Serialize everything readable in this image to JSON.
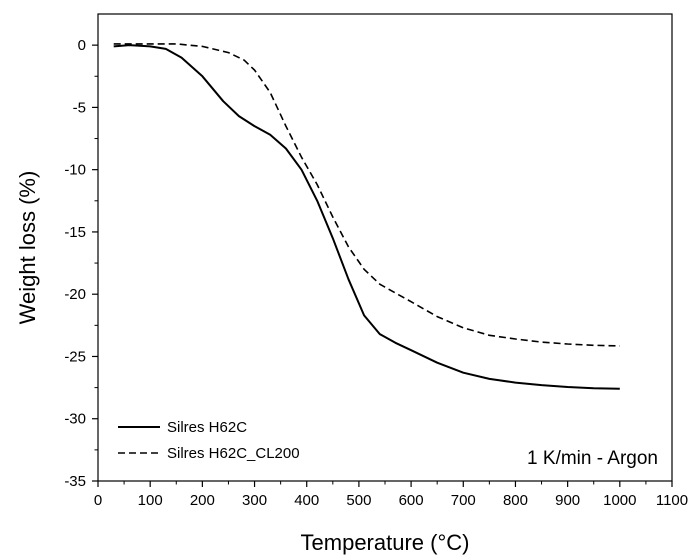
{
  "chart_data": {
    "type": "line",
    "title": "",
    "xlabel": "Temperature (°C)",
    "ylabel": "Weight loss (%)",
    "xlim": [
      0,
      1100
    ],
    "ylim": [
      -35,
      2.5
    ],
    "xticks": [
      0,
      100,
      200,
      300,
      400,
      500,
      600,
      700,
      800,
      900,
      1000,
      1100
    ],
    "yticks": [
      0,
      -5,
      -10,
      -15,
      -20,
      -25,
      -30,
      -35
    ],
    "grid": false,
    "legend_position": "bottom-left",
    "annotation": "1 K/min - Argon",
    "series": [
      {
        "name": "Silres H62C",
        "style": "solid",
        "color": "#000000",
        "x": [
          30,
          60,
          100,
          130,
          160,
          200,
          240,
          270,
          300,
          330,
          360,
          390,
          420,
          450,
          480,
          510,
          540,
          570,
          600,
          650,
          700,
          750,
          800,
          850,
          900,
          950,
          1000
        ],
        "y": [
          -0.1,
          0,
          -0.1,
          -0.3,
          -1,
          -2.5,
          -4.5,
          -5.7,
          -6.5,
          -7.2,
          -8.3,
          -10,
          -12.5,
          -15.5,
          -18.8,
          -21.7,
          -23.2,
          -23.9,
          -24.5,
          -25.5,
          -26.3,
          -26.8,
          -27.1,
          -27.3,
          -27.45,
          -27.55,
          -27.6
        ]
      },
      {
        "name": "Silres H62C_CL200",
        "style": "dashed",
        "color": "#000000",
        "x": [
          30,
          60,
          100,
          150,
          200,
          250,
          280,
          300,
          330,
          360,
          390,
          420,
          450,
          480,
          510,
          540,
          570,
          600,
          650,
          700,
          750,
          800,
          850,
          900,
          950,
          1000
        ],
        "y": [
          0.1,
          0.1,
          0.1,
          0.1,
          -0.1,
          -0.6,
          -1.2,
          -2,
          -3.8,
          -6.5,
          -9,
          -11.2,
          -13.8,
          -16.2,
          -18,
          -19.2,
          -19.9,
          -20.6,
          -21.8,
          -22.7,
          -23.3,
          -23.6,
          -23.85,
          -24,
          -24.1,
          -24.15
        ]
      }
    ]
  }
}
